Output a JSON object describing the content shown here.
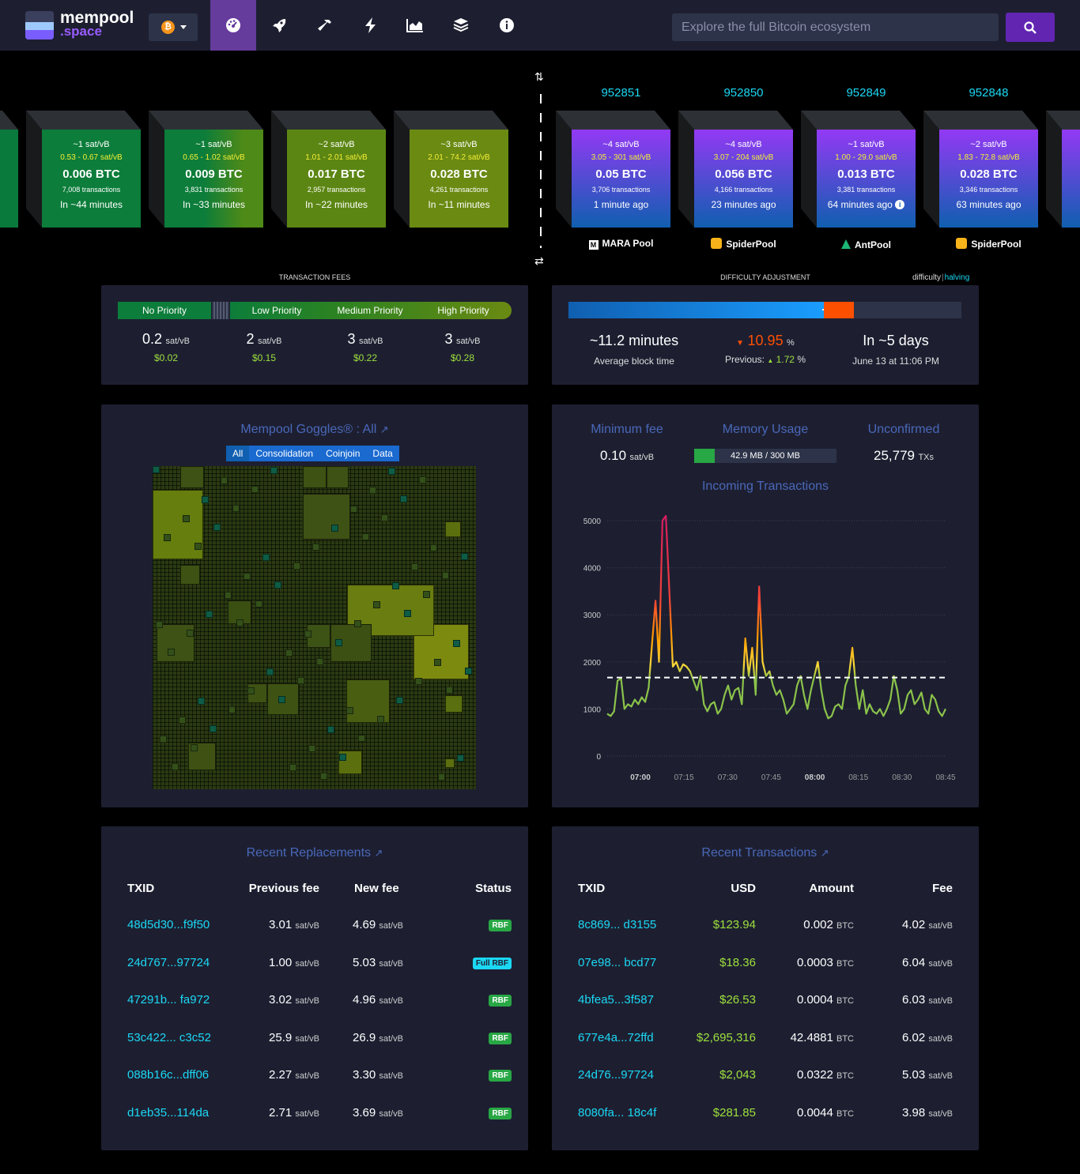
{
  "nav": {
    "logo_line1": "mempool",
    "logo_line2": ".space",
    "network_icon": "bitcoin-icon",
    "search_placeholder": "Explore the full Bitcoin ecosystem",
    "items": [
      "dashboard-icon",
      "rocket-icon",
      "hammer-icon",
      "lightning-icon",
      "chart-icon",
      "layers-icon",
      "info-icon"
    ]
  },
  "mempool_blocks": [
    {
      "fee": "~1 sat/vB",
      "range": "0.53 - 0.67 sat/vB",
      "btc": "0.006 BTC",
      "tx": "7,008 transactions",
      "eta": "In ~44 minutes"
    },
    {
      "fee": "~1 sat/vB",
      "range": "0.65 - 1.02 sat/vB",
      "btc": "0.009 BTC",
      "tx": "3,831 transactions",
      "eta": "In ~33 minutes"
    },
    {
      "fee": "~2 sat/vB",
      "range": "1.01 - 2.01 sat/vB",
      "btc": "0.017 BTC",
      "tx": "2,957 transactions",
      "eta": "In ~22 minutes"
    },
    {
      "fee": "~3 sat/vB",
      "range": "2.01 - 74.2 sat/vB",
      "btc": "0.028 BTC",
      "tx": "4,261 transactions",
      "eta": "In ~11 minutes"
    }
  ],
  "blocks": [
    {
      "height": "952851",
      "fee": "~4 sat/vB",
      "range": "3.05 - 301 sat/vB",
      "btc": "0.05 BTC",
      "tx": "3,706 transactions",
      "time": "1 minute ago",
      "pool": "MARA Pool"
    },
    {
      "height": "952850",
      "fee": "~4 sat/vB",
      "range": "3.07 - 204 sat/vB",
      "btc": "0.056 BTC",
      "tx": "4,166 transactions",
      "time": "23 minutes ago",
      "pool": "SpiderPool"
    },
    {
      "height": "952849",
      "fee": "~1 sat/vB",
      "range": "1.00 - 29.0 sat/vB",
      "btc": "0.013 BTC",
      "tx": "3,381 transactions",
      "time": "64 minutes ago",
      "pool": "AntPool"
    },
    {
      "height": "952848",
      "fee": "~2 sat/vB",
      "range": "1.83 - 72.8 sat/vB",
      "btc": "0.028 BTC",
      "tx": "3,346 transactions",
      "time": "63 minutes ago",
      "pool": "SpiderPool"
    }
  ],
  "fees": {
    "title": "TRANSACTION FEES",
    "labels": [
      "No Priority",
      "Low Priority",
      "Medium Priority",
      "High Priority"
    ],
    "values": [
      "0.2",
      "2",
      "3",
      "3"
    ],
    "unit": "sat/vB",
    "usd": [
      "$0.02",
      "$0.15",
      "$0.22",
      "$0.28"
    ]
  },
  "difficulty": {
    "title": "DIFFICULTY ADJUSTMENT",
    "tab_difficulty": "difficulty",
    "tab_sep": "|",
    "tab_halving": "halving",
    "avg": "~11.2 minutes",
    "avg_label": "Average block time",
    "change": "10.95",
    "pct": "%",
    "prev_label": "Previous:",
    "prev": "1.72",
    "eta": "In ~5 days",
    "eta_date": "June 13 at 11:06 PM",
    "progress": 0.65
  },
  "goggles": {
    "title": "Mempool Goggles® : All",
    "filters": [
      "All",
      "Consolidation",
      "Coinjoin",
      "Data"
    ]
  },
  "stats": {
    "min_fee_label": "Minimum fee",
    "min_fee": "0.10",
    "min_fee_unit": "sat/vB",
    "mem_label": "Memory Usage",
    "mem": "42.9 MB / 300 MB",
    "mem_fraction": 0.143,
    "unconf_label": "Unconfirmed",
    "unconf": "25,779",
    "unconf_unit": "TXs",
    "incoming_label": "Incoming Transactions"
  },
  "chart_data": {
    "type": "line",
    "title": "Incoming Transactions",
    "yticks": [
      "5000",
      "4000",
      "3000",
      "2000",
      "1000",
      "0"
    ],
    "xticks": [
      "07:00",
      "07:15",
      "07:30",
      "07:45",
      "08:00",
      "08:15",
      "08:30",
      "08:45"
    ],
    "ylim": [
      0,
      5000
    ],
    "reference_line": 1667,
    "values": [
      900,
      850,
      950,
      1600,
      1650,
      1000,
      1100,
      1050,
      1200,
      1100,
      1250,
      1150,
      1450,
      2400,
      3300,
      2000,
      5000,
      5100,
      3500,
      1900,
      2000,
      1800,
      1950,
      1900,
      1800,
      1600,
      1400,
      1700,
      1100,
      950,
      1100,
      1150,
      900,
      1000,
      1300,
      1500,
      1200,
      1400,
      1450,
      1100,
      2500,
      1700,
      2300,
      1300,
      3600,
      2000,
      1700,
      1800,
      1500,
      1300,
      1400,
      1200,
      900,
      1000,
      1100,
      1500,
      1700,
      1300,
      1000,
      1400,
      1700,
      2000,
      1400,
      1000,
      800,
      850,
      1050,
      1100,
      1000,
      1500,
      1700,
      2300,
      1500,
      1000,
      1400,
      900,
      1100,
      950,
      900,
      1000,
      850,
      1000,
      1200,
      1700,
      1400,
      900,
      1000,
      1300,
      1400,
      1100,
      1200,
      1350,
      1000,
      900,
      1300,
      1200,
      950,
      850,
      1000
    ],
    "x_range": [
      "07:00",
      "08:49"
    ]
  },
  "replacements": {
    "title": "Recent Replacements",
    "headers": [
      "TXID",
      "Previous fee",
      "New fee",
      "Status"
    ],
    "rows": [
      {
        "txid": "48d5d30...f9f50",
        "prev": "3.01",
        "new": "4.69",
        "status": "RBF"
      },
      {
        "txid": "24d767...97724",
        "prev": "1.00",
        "new": "5.03",
        "status": "Full RBF"
      },
      {
        "txid": "47291b... fa972",
        "prev": "3.02",
        "new": "4.96",
        "status": "RBF"
      },
      {
        "txid": "53c422... c3c52",
        "prev": "25.9",
        "new": "26.9",
        "status": "RBF"
      },
      {
        "txid": "088b16c...dff06",
        "prev": "2.27",
        "new": "3.30",
        "status": "RBF"
      },
      {
        "txid": "d1eb35...114da",
        "prev": "2.71",
        "new": "3.69",
        "status": "RBF"
      }
    ],
    "unit": "sat/vB"
  },
  "transactions": {
    "title": "Recent Transactions",
    "headers": [
      "TXID",
      "USD",
      "Amount",
      "Fee"
    ],
    "rows": [
      {
        "txid": "8c869... d3155",
        "usd": "$123.94",
        "amt": "0.002",
        "fee": "4.02"
      },
      {
        "txid": "07e98... bcd77",
        "usd": "$18.36",
        "amt": "0.0003",
        "fee": "6.04"
      },
      {
        "txid": "4bfea5...3f587",
        "usd": "$26.53",
        "amt": "0.0004",
        "fee": "6.03"
      },
      {
        "txid": "677e4a...72ffd",
        "usd": "$2,695,316",
        "amt": "42.4881",
        "fee": "6.02"
      },
      {
        "txid": "24d76...97724",
        "usd": "$2,043",
        "amt": "0.0322",
        "fee": "5.03"
      },
      {
        "txid": "8080fa... 18c4f",
        "usd": "$281.85",
        "amt": "0.0044",
        "fee": "3.98"
      }
    ],
    "amt_unit": "BTC",
    "fee_unit": "sat/vB"
  }
}
